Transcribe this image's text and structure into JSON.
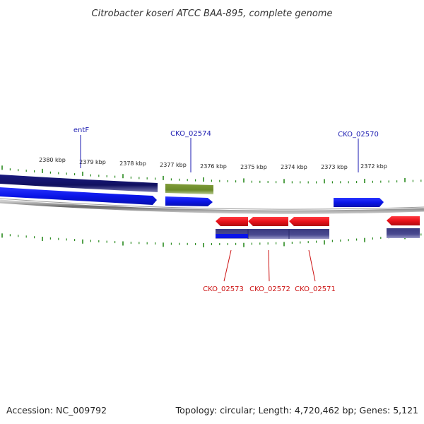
{
  "genome": {
    "title": "Citrobacter koseri ATCC BAA-895, complete genome",
    "accession": "Accession: NC_009792",
    "summary": "Topology: circular; Length: 4,720,462 bp; Genes: 5,121"
  },
  "ruler": {
    "unit": "kbp",
    "ticks": [
      "2380 kbp",
      "2379 kbp",
      "2378 kbp",
      "2377 kbp",
      "2376 kbp",
      "2375 kbp",
      "2374 kbp",
      "2373 kbp",
      "2372 kbp"
    ]
  },
  "colors": {
    "forward_gene": "#0a14e8",
    "reverse_gene": "#e8121a",
    "forward_label": "#1a1ab0",
    "reverse_label": "#cc1111",
    "tick": "#2a8a1f",
    "backbone": "#7a7a7a",
    "navy_feature": "#101060",
    "olive_feature": "#6b8a2a",
    "slate_feature": "#4a4a90"
  },
  "labels": {
    "forward": [
      "entF",
      "CKO_02574",
      "CKO_02570"
    ],
    "reverse": [
      "CKO_02573",
      "CKO_02572",
      "CKO_02571"
    ]
  }
}
